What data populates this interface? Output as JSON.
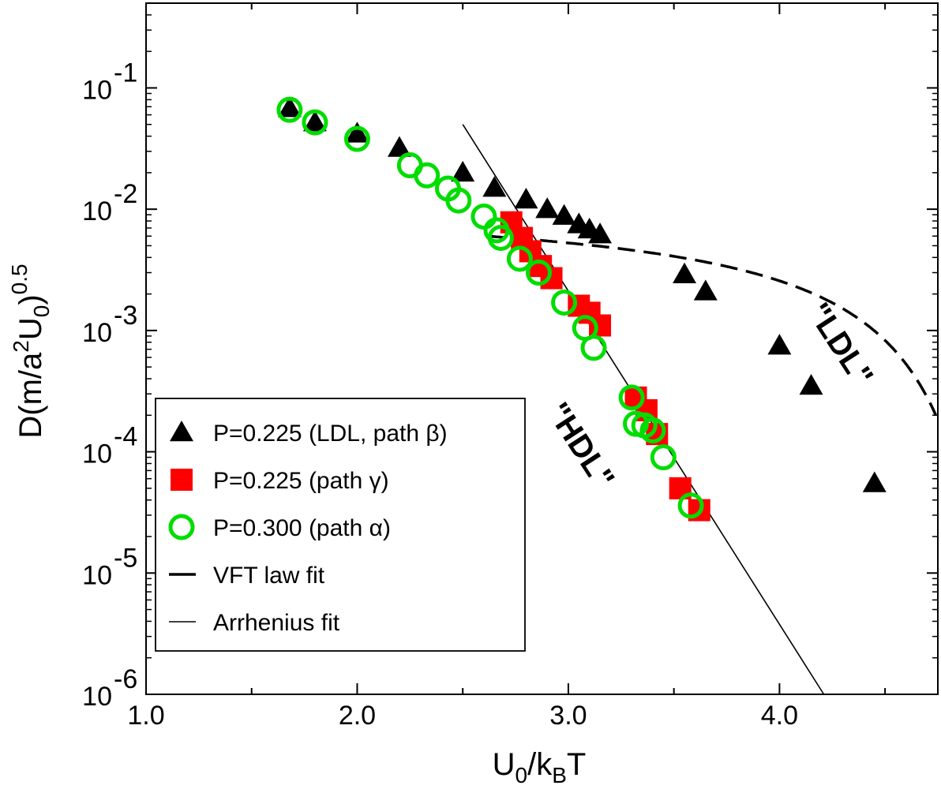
{
  "chart_data": {
    "type": "scatter",
    "title": "",
    "xlabel": "U0/kBT",
    "xlabel_parts": {
      "main": "U",
      "sub1": "0",
      "slash": "/k",
      "sub2": "B",
      "end": "T"
    },
    "ylabel": "D(m/a2U0)0.5",
    "ylabel_parts": {
      "pre": "D(m/a",
      "sup1": "2",
      "mid": "U",
      "sub1": "0",
      "close": ")",
      "sup2": "0.5"
    },
    "xlim": [
      1.0,
      4.75
    ],
    "ylim": [
      1e-06,
      0.5
    ],
    "yscale": "log",
    "grid": false,
    "x_ticks": [
      {
        "value": 1.0,
        "label": "1.0"
      },
      {
        "value": 2.0,
        "label": "2.0"
      },
      {
        "value": 3.0,
        "label": "3.0"
      },
      {
        "value": 4.0,
        "label": "4.0"
      }
    ],
    "x_minor_ticks": [
      1.5,
      2.5,
      3.5,
      4.5
    ],
    "y_ticks": [
      {
        "value": 1e-06,
        "base": "10",
        "exp": "-6"
      },
      {
        "value": 1e-05,
        "base": "10",
        "exp": "-5"
      },
      {
        "value": 0.0001,
        "base": "10",
        "exp": "-4"
      },
      {
        "value": 0.001,
        "base": "10",
        "exp": "-3"
      },
      {
        "value": 0.01,
        "base": "10",
        "exp": "-2"
      },
      {
        "value": 0.1,
        "base": "10",
        "exp": "-1"
      }
    ],
    "series": [
      {
        "name": "P=0.225 (LDL, path β)",
        "marker": "triangle",
        "color": "#000000",
        "x": [
          1.68,
          1.8,
          2.0,
          2.2,
          2.5,
          2.65,
          2.8,
          2.9,
          2.98,
          3.05,
          3.1,
          3.15,
          3.55,
          3.65,
          4.0,
          4.15,
          4.45
        ],
        "y": [
          0.068,
          0.052,
          0.042,
          0.032,
          0.02,
          0.015,
          0.012,
          0.01,
          0.0088,
          0.0075,
          0.0068,
          0.0062,
          0.0029,
          0.0021,
          0.00075,
          0.00035,
          5.5e-05
        ]
      },
      {
        "name": "P=0.225 (path γ)",
        "marker": "square",
        "color": "#ff0000",
        "x": [
          2.73,
          2.78,
          2.82,
          2.87,
          2.92,
          3.05,
          3.1,
          3.15,
          3.32,
          3.37,
          3.42,
          3.53,
          3.62
        ],
        "y": [
          0.0078,
          0.0058,
          0.0045,
          0.0034,
          0.0027,
          0.0016,
          0.0014,
          0.0011,
          0.00028,
          0.00022,
          0.00014,
          5e-05,
          3.3e-05
        ]
      },
      {
        "name": "P=0.300 (path α)",
        "marker": "circle",
        "color": "#00dd00",
        "x": [
          1.68,
          1.8,
          2.0,
          2.25,
          2.33,
          2.43,
          2.48,
          2.6,
          2.66,
          2.68,
          2.77,
          2.86,
          2.98,
          3.08,
          3.12,
          3.3,
          3.32,
          3.36,
          3.4,
          3.45,
          3.58
        ],
        "y": [
          0.066,
          0.052,
          0.038,
          0.023,
          0.019,
          0.0148,
          0.0118,
          0.0087,
          0.0067,
          0.0058,
          0.0039,
          0.003,
          0.0017,
          0.00105,
          0.00072,
          0.00028,
          0.00017,
          0.000165,
          0.00015,
          9e-05,
          3.6e-05
        ]
      }
    ],
    "fits": [
      {
        "name": "VFT law fit",
        "style": "dashed",
        "A": 0.0125,
        "B": 1.9,
        "U_c": 5.2,
        "x_start": 2.62,
        "x_end": 4.74
      },
      {
        "name": "Arrhenius fit",
        "style": "solid",
        "x": [
          2.5,
          4.21
        ],
        "y": [
          0.05,
          1e-06
        ]
      }
    ],
    "legend": {
      "position": "bottom-left",
      "entries": [
        {
          "label": "P=0.225 (LDL, path β)",
          "marker": "triangle"
        },
        {
          "label": "P=0.225 (path γ)",
          "marker": "square"
        },
        {
          "label": "P=0.300 (path α)",
          "marker": "circle"
        },
        {
          "label": "VFT law fit",
          "marker": "thick-line"
        },
        {
          "label": "Arrhenius fit",
          "marker": "thin-line"
        }
      ]
    },
    "annotations": [
      {
        "text": "\"HDL\"",
        "x": 3.05,
        "y": 0.00011,
        "angle": 57
      },
      {
        "text": "\"LDL\"",
        "x": 4.28,
        "y": 0.00075,
        "angle": 57
      }
    ]
  }
}
